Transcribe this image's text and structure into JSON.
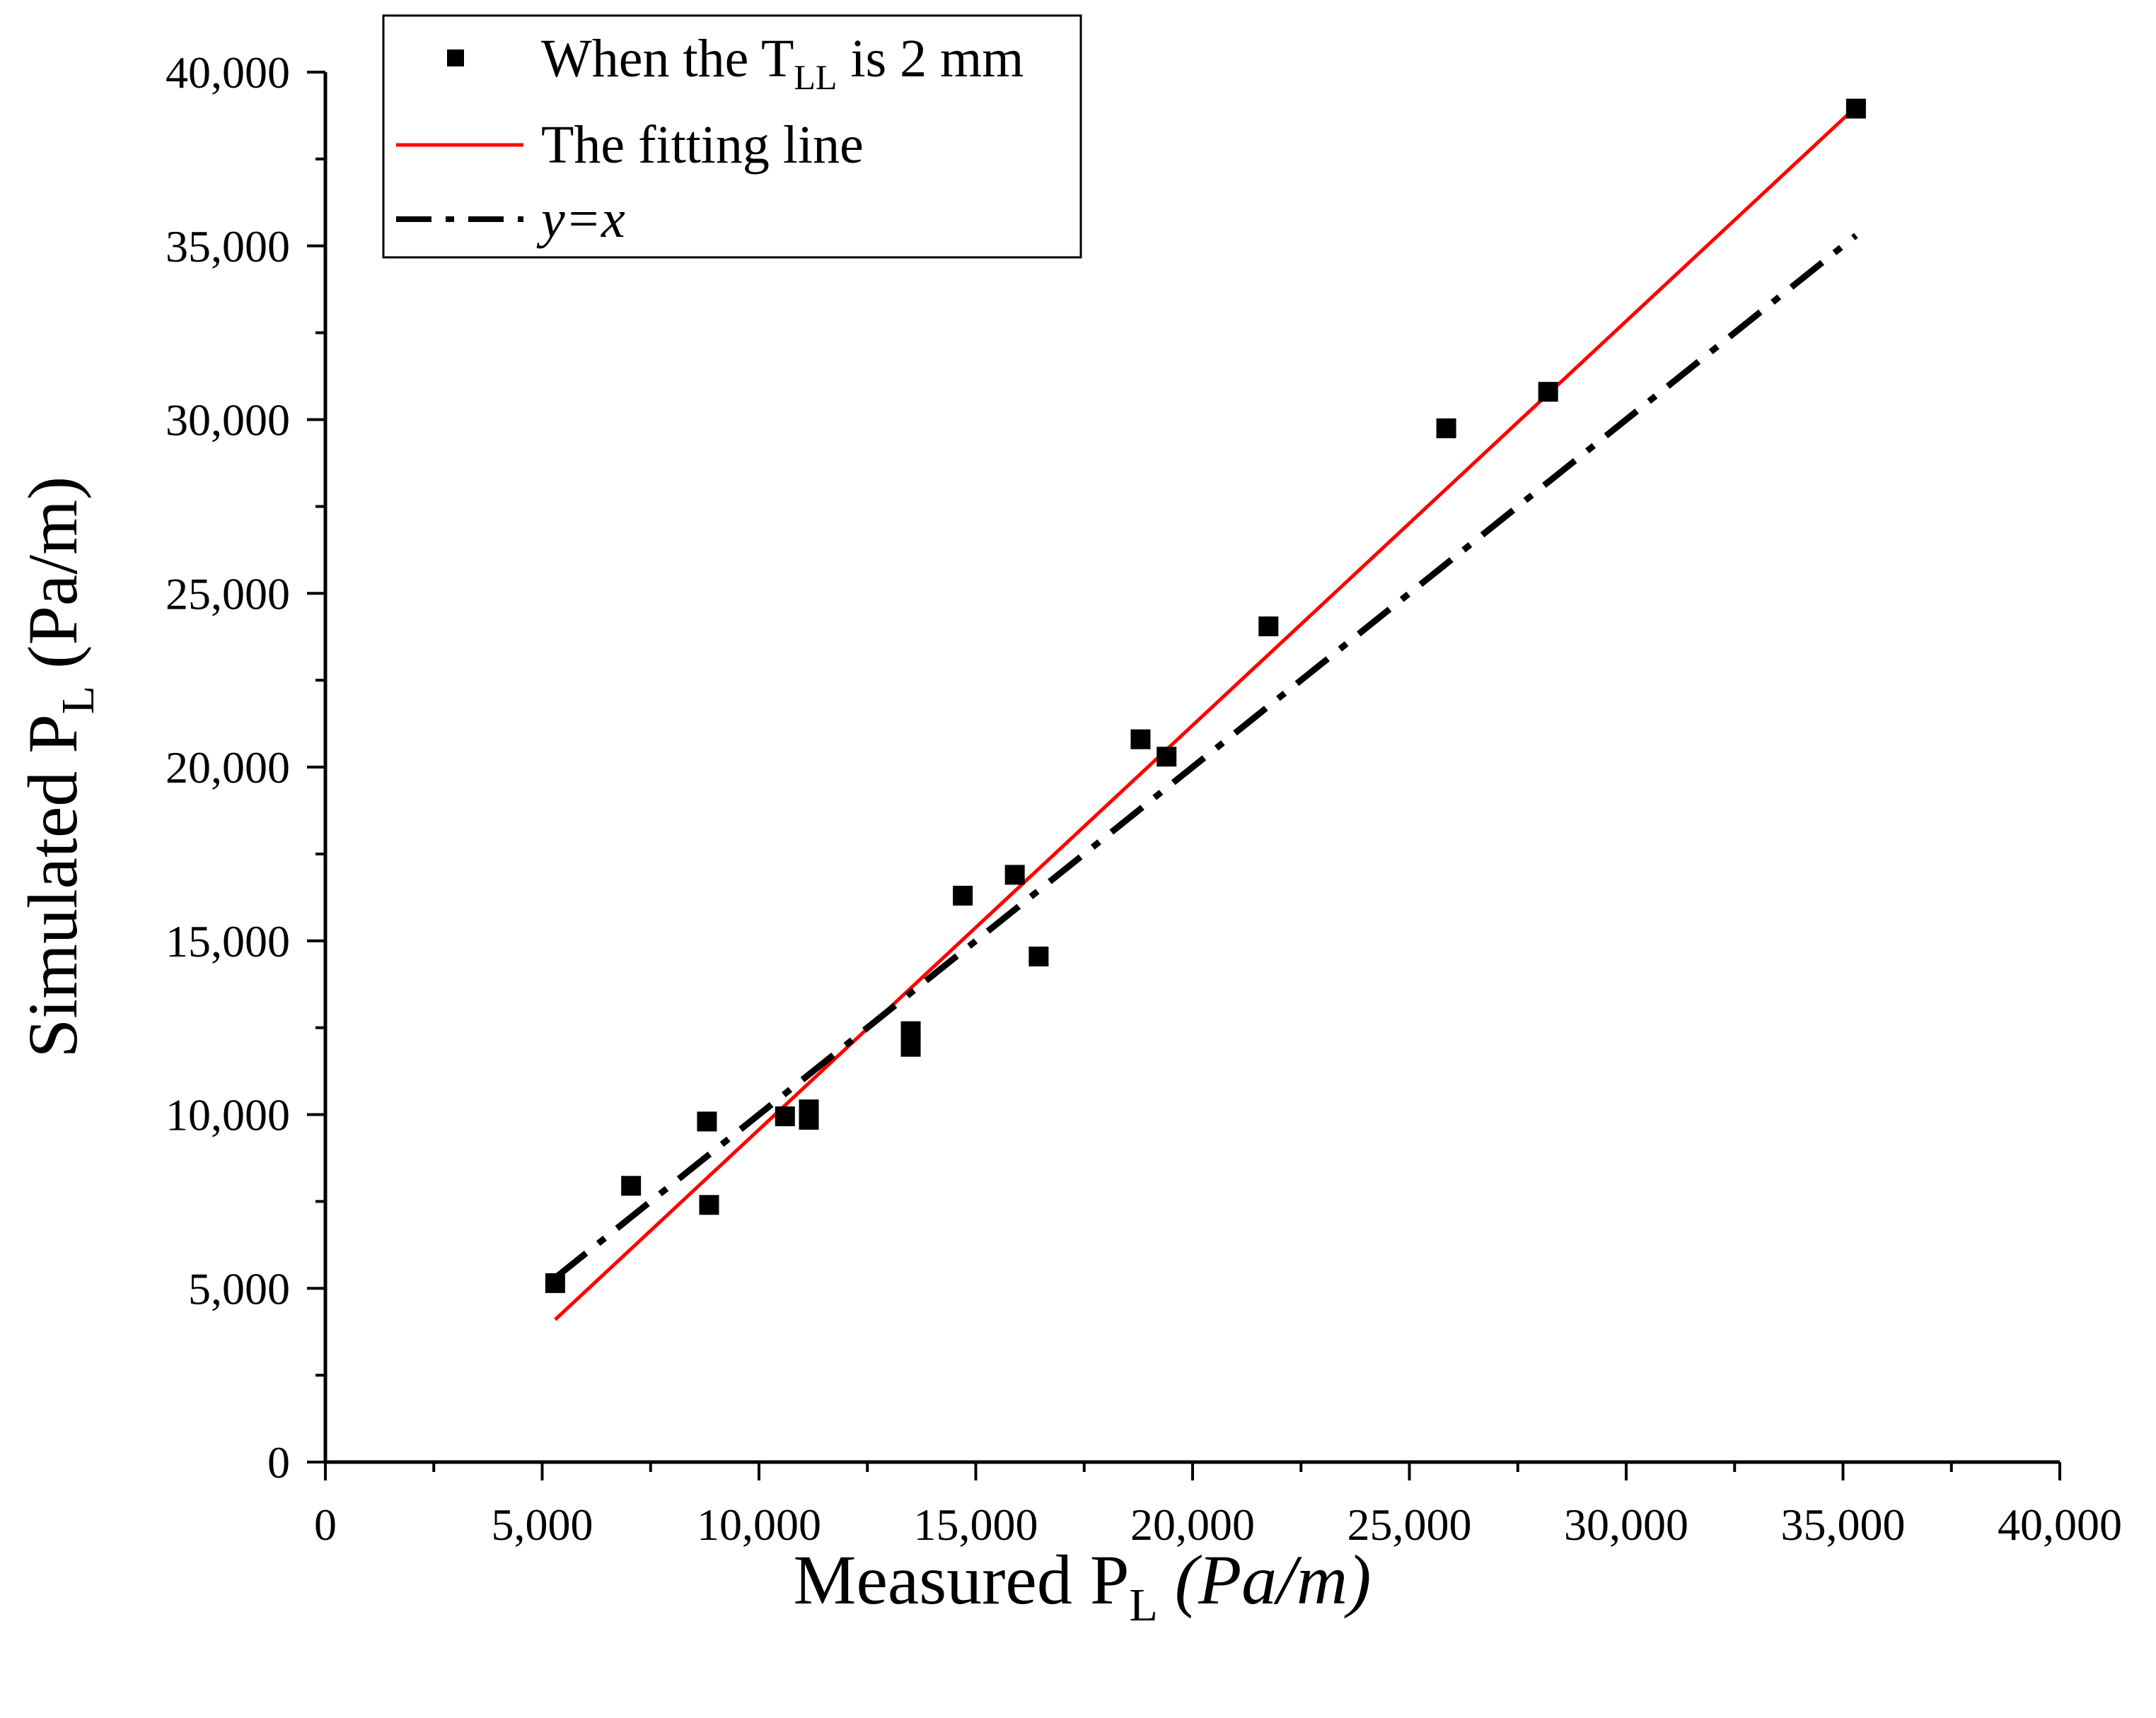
{
  "chart_data": {
    "type": "scatter",
    "x_axis": {
      "label_main": "Measured P",
      "label_sub": "L",
      "label_unit": "(Pa/m)",
      "range": [
        0,
        40000
      ],
      "major_ticks": [
        0,
        5000,
        10000,
        15000,
        20000,
        25000,
        30000,
        35000,
        40000
      ],
      "tick_labels": [
        "0",
        "5,000",
        "10,000",
        "15,000",
        "20,000",
        "25,000",
        "30,000",
        "35,000",
        "40,000"
      ],
      "minor_step": 2500
    },
    "y_axis": {
      "label_main": "Simulated P",
      "label_sub": "L",
      "label_unit": "(Pa/m)",
      "range": [
        0,
        40000
      ],
      "major_ticks": [
        0,
        5000,
        10000,
        15000,
        20000,
        25000,
        30000,
        35000,
        40000
      ],
      "tick_labels": [
        "0",
        "5,000",
        "10,000",
        "15,000",
        "20,000",
        "25,000",
        "30,000",
        "35,000",
        "40,000"
      ],
      "minor_step": 2500
    },
    "series": [
      {
        "name": "When the T_LL is 2 mm",
        "kind": "scatter",
        "marker": "square",
        "color": "#000000",
        "points": [
          [
            5300,
            5150
          ],
          [
            7050,
            7950
          ],
          [
            8800,
            9800
          ],
          [
            8850,
            7400
          ],
          [
            10600,
            9950
          ],
          [
            11150,
            10150
          ],
          [
            11150,
            9850
          ],
          [
            13500,
            12400
          ],
          [
            13500,
            11950
          ],
          [
            14700,
            16300
          ],
          [
            15900,
            16900
          ],
          [
            16450,
            14550
          ],
          [
            18800,
            20800
          ],
          [
            19400,
            20300
          ],
          [
            21750,
            24050
          ],
          [
            25850,
            29750
          ],
          [
            28200,
            30800
          ],
          [
            35300,
            38950
          ]
        ]
      },
      {
        "name": "The fitting line",
        "kind": "line",
        "color": "#ff0000",
        "points": [
          [
            5300,
            4100
          ],
          [
            35300,
            39000
          ]
        ]
      },
      {
        "name": "y=x",
        "kind": "line",
        "style": "dash-dot",
        "color": "#000000",
        "points": [
          [
            5300,
            5300
          ],
          [
            35300,
            35300
          ]
        ]
      }
    ],
    "legend": {
      "position": "top-left",
      "entries": [
        {
          "prefix": "When the T",
          "sub": "LL",
          "suffix": " is 2 mm"
        },
        {
          "prefix": "The fitting line",
          "sub": "",
          "suffix": ""
        },
        {
          "prefix": "y=x",
          "sub": "",
          "suffix": ""
        }
      ]
    }
  }
}
